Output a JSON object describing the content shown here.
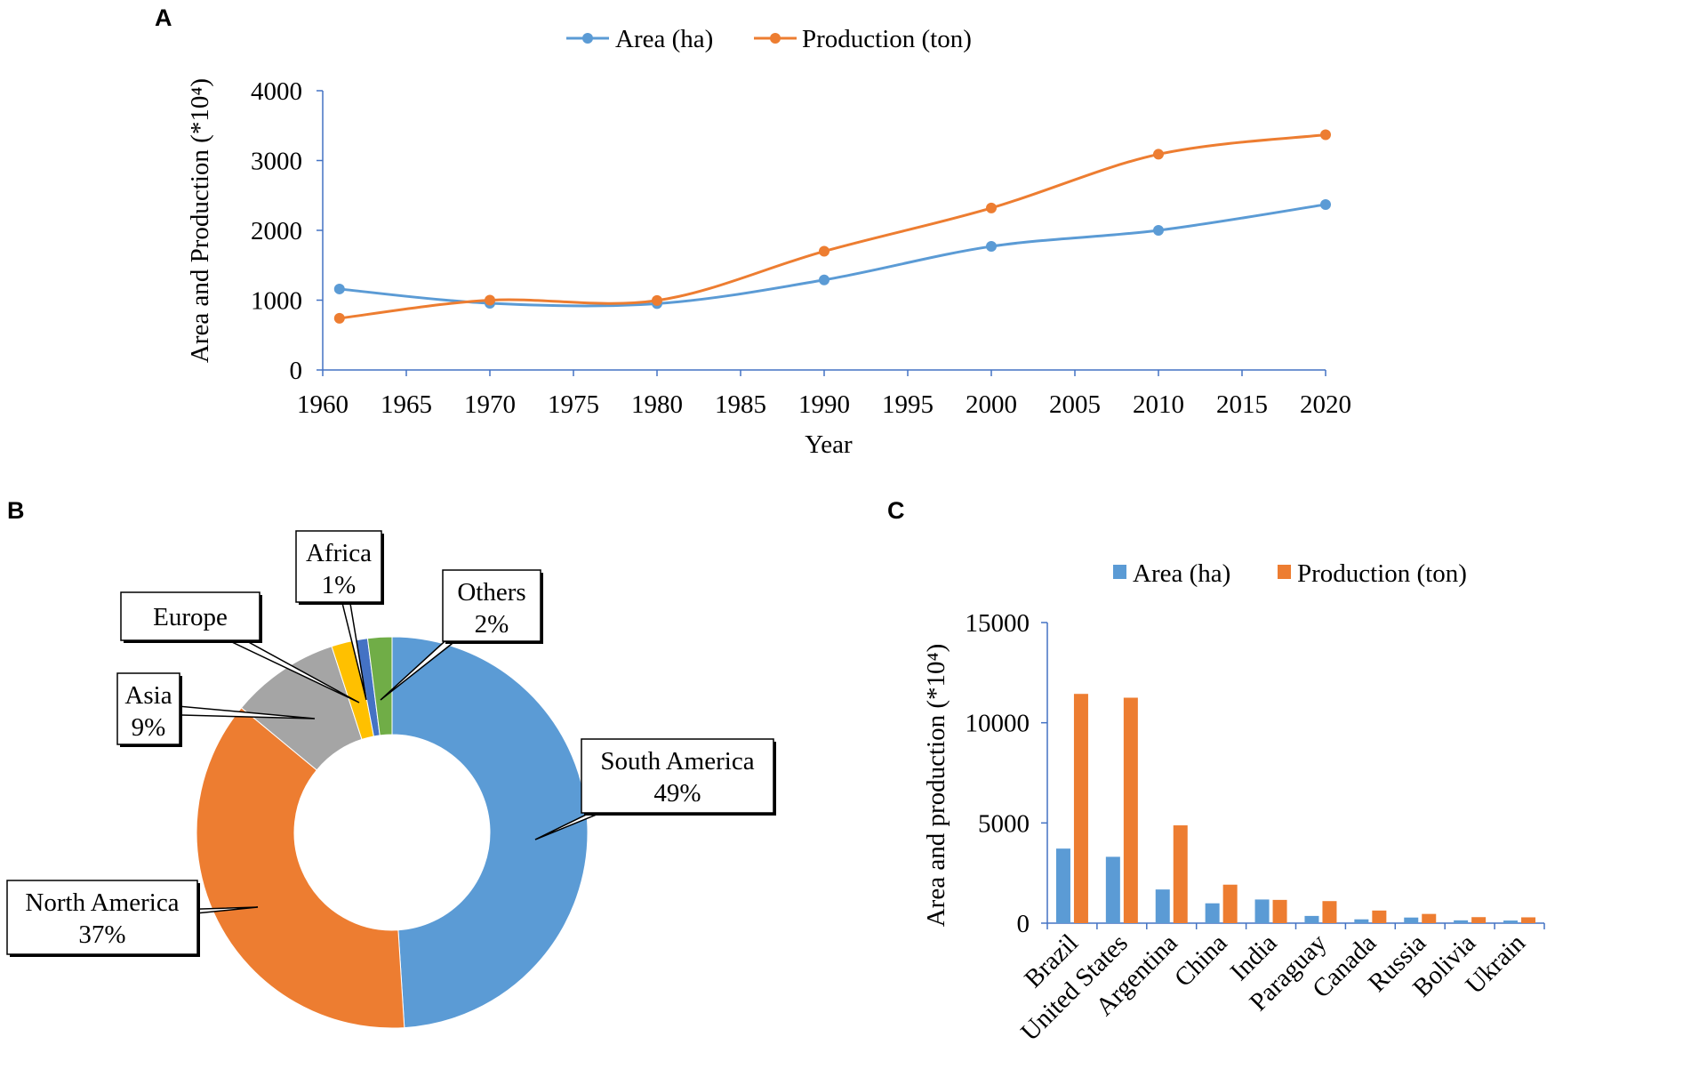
{
  "panels": {
    "a": "A",
    "b": "B",
    "c": "C"
  },
  "colors": {
    "area": "#5b9bd5",
    "production": "#ed7d31",
    "asia": "#a5a5a5",
    "europe": "#ffc000",
    "africa": "#4472c4",
    "others": "#70ad47",
    "axis": "#4472c4"
  },
  "chart_data": [
    {
      "type": "line",
      "title": "",
      "xlabel": "Year",
      "ylabel": "Area and Production (*10⁴)",
      "xlim": [
        1960,
        2020
      ],
      "ylim": [
        0,
        4000
      ],
      "xticks": [
        "1960",
        "1965",
        "1970",
        "1975",
        "1980",
        "1985",
        "1990",
        "1995",
        "2000",
        "2005",
        "2010",
        "2015",
        "2020"
      ],
      "yticks": [
        "0",
        "1000",
        "2000",
        "3000",
        "4000"
      ],
      "x": [
        1961,
        1970,
        1980,
        1990,
        2000,
        2010,
        2020
      ],
      "series": [
        {
          "name": "Area (ha)",
          "values": [
            1160,
            955,
            950,
            1290,
            1770,
            2000,
            2370
          ]
        },
        {
          "name": "Production (ton)",
          "values": [
            740,
            1000,
            995,
            1700,
            2320,
            3090,
            3370
          ]
        }
      ],
      "legend": "top"
    },
    {
      "type": "pie",
      "style": "doughnut",
      "slices": [
        {
          "name": "South America",
          "value": 49,
          "label": "49%"
        },
        {
          "name": "North America",
          "value": 37,
          "label": "37%"
        },
        {
          "name": "Asia",
          "value": 9,
          "label": "9%"
        },
        {
          "name": "Europe",
          "value": 2,
          "label": ""
        },
        {
          "name": "Africa",
          "value": 1,
          "label": "1%"
        },
        {
          "name": "Others",
          "value": 2,
          "label": "2%"
        }
      ]
    },
    {
      "type": "bar",
      "title": "",
      "xlabel": "",
      "ylabel": "Area and production (*10⁴)",
      "ylim": [
        0,
        15000
      ],
      "yticks": [
        "0",
        "5000",
        "10000",
        "15000"
      ],
      "categories": [
        "Brazil",
        "United States",
        "Argentina",
        "China",
        "India",
        "Paraguay",
        "Canada",
        "Russia",
        "Bolivia",
        "Ukrain"
      ],
      "series": [
        {
          "name": "Area (ha)",
          "values": [
            3720,
            3310,
            1680,
            990,
            1180,
            360,
            190,
            280,
            140,
            130
          ]
        },
        {
          "name": "Production (ton)",
          "values": [
            11440,
            11250,
            4880,
            1920,
            1160,
            1100,
            630,
            460,
            300,
            290
          ]
        }
      ],
      "legend": "top"
    }
  ]
}
